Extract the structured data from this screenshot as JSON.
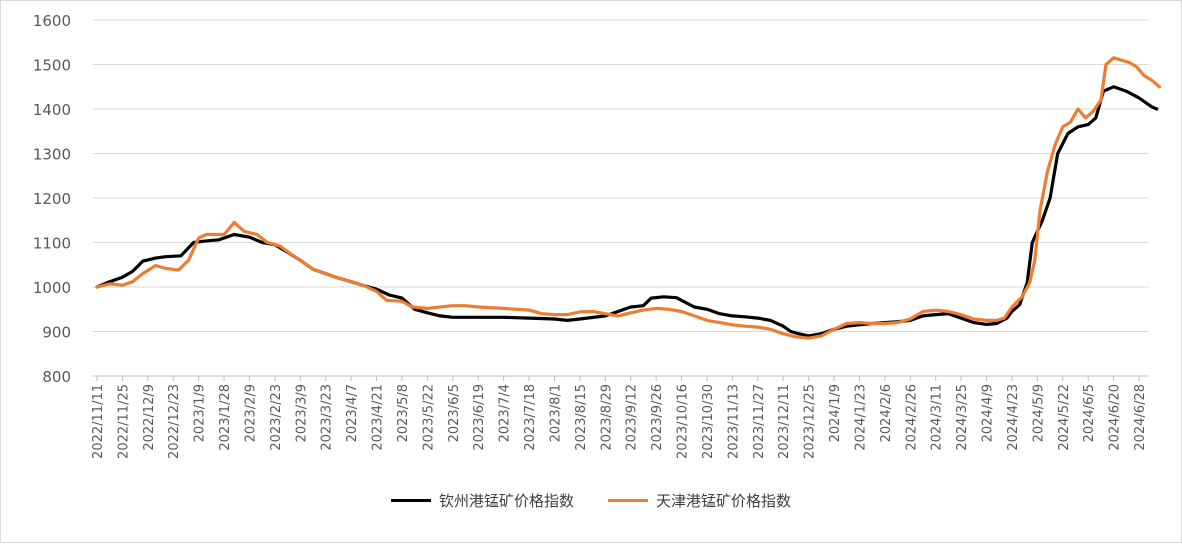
{
  "chart_data": {
    "type": "line",
    "title": "",
    "xlabel": "",
    "ylabel": "",
    "ylim": [
      800,
      1600
    ],
    "yticks": [
      800,
      900,
      1000,
      1100,
      1200,
      1300,
      1400,
      1500,
      1600
    ],
    "grid": true,
    "legend_position": "bottom",
    "x_tick_labels": [
      "2022/11/11",
      "2022/11/25",
      "2022/12/9",
      "2022/12/23",
      "2023/1/9",
      "2023/1/28",
      "2023/2/9",
      "2023/2/23",
      "2023/3/9",
      "2023/3/23",
      "2023/4/7",
      "2023/4/21",
      "2023/5/8",
      "2023/5/22",
      "2023/6/5",
      "2023/6/19",
      "2023/7/4",
      "2023/7/18",
      "2023/8/1",
      "2023/8/15",
      "2023/8/29",
      "2023/9/12",
      "2023/9/26",
      "2023/10/16",
      "2023/10/30",
      "2023/11/13",
      "2023/11/27",
      "2023/12/11",
      "2023/12/25",
      "2024/1/9",
      "2024/1/23",
      "2024/2/6",
      "2024/2/26",
      "2024/3/11",
      "2024/3/25",
      "2024/4/9",
      "2024/4/23",
      "2024/5/9",
      "2024/5/22",
      "2024/6/5",
      "2024/6/20",
      "2024/6/28"
    ],
    "series": [
      {
        "name": "钦州港锰矿价格指数",
        "color": "#000000",
        "points": [
          [
            0,
            1000
          ],
          [
            0.5,
            1012
          ],
          [
            1,
            1022
          ],
          [
            1.4,
            1035
          ],
          [
            1.8,
            1058
          ],
          [
            2.3,
            1065
          ],
          [
            2.7,
            1068
          ],
          [
            3.3,
            1070
          ],
          [
            3.8,
            1100
          ],
          [
            4.2,
            1103
          ],
          [
            4.8,
            1106
          ],
          [
            5.4,
            1118
          ],
          [
            6,
            1112
          ],
          [
            6.5,
            1100
          ],
          [
            7,
            1095
          ],
          [
            7.5,
            1078
          ],
          [
            8,
            1060
          ],
          [
            8.5,
            1040
          ],
          [
            9,
            1030
          ],
          [
            9.5,
            1020
          ],
          [
            10,
            1012
          ],
          [
            10.5,
            1003
          ],
          [
            11,
            995
          ],
          [
            11.5,
            982
          ],
          [
            12,
            975
          ],
          [
            12.5,
            950
          ],
          [
            13,
            942
          ],
          [
            13.5,
            935
          ],
          [
            14,
            932
          ],
          [
            15,
            932
          ],
          [
            16,
            932
          ],
          [
            17,
            930
          ],
          [
            18,
            928
          ],
          [
            18.5,
            925
          ],
          [
            19,
            928
          ],
          [
            20,
            935
          ],
          [
            20.5,
            945
          ],
          [
            21,
            955
          ],
          [
            21.5,
            958
          ],
          [
            21.8,
            975
          ],
          [
            22.3,
            978
          ],
          [
            22.8,
            976
          ],
          [
            23,
            970
          ],
          [
            23.5,
            955
          ],
          [
            24,
            950
          ],
          [
            24.5,
            940
          ],
          [
            25,
            935
          ],
          [
            25.5,
            933
          ],
          [
            26,
            930
          ],
          [
            26.5,
            925
          ],
          [
            27,
            912
          ],
          [
            27.3,
            900
          ],
          [
            27.6,
            895
          ],
          [
            28,
            890
          ],
          [
            28.5,
            895
          ],
          [
            29,
            905
          ],
          [
            29.5,
            912
          ],
          [
            30,
            915
          ],
          [
            30.5,
            918
          ],
          [
            31,
            920
          ],
          [
            31.5,
            922
          ],
          [
            32,
            925
          ],
          [
            32.5,
            935
          ],
          [
            33,
            938
          ],
          [
            33.5,
            940
          ],
          [
            34,
            930
          ],
          [
            34.5,
            920
          ],
          [
            35,
            916
          ],
          [
            35.4,
            918
          ],
          [
            35.8,
            930
          ],
          [
            36,
            945
          ],
          [
            36.3,
            960
          ],
          [
            36.6,
            1010
          ],
          [
            36.8,
            1100
          ],
          [
            37.2,
            1150
          ],
          [
            37.5,
            1200
          ],
          [
            37.8,
            1300
          ],
          [
            38.2,
            1345
          ],
          [
            38.6,
            1360
          ],
          [
            39,
            1365
          ],
          [
            39.3,
            1380
          ],
          [
            39.6,
            1440
          ],
          [
            40,
            1450
          ],
          [
            40.5,
            1440
          ],
          [
            41,
            1425
          ],
          [
            41.5,
            1405
          ],
          [
            41.7,
            1400
          ]
        ]
      },
      {
        "name": "天津港锰矿价格指数",
        "color": "#ed7d31",
        "points": [
          [
            0,
            1000
          ],
          [
            0.5,
            1007
          ],
          [
            1,
            1004
          ],
          [
            1.4,
            1012
          ],
          [
            1.8,
            1030
          ],
          [
            2.3,
            1048
          ],
          [
            2.7,
            1042
          ],
          [
            3.2,
            1038
          ],
          [
            3.6,
            1060
          ],
          [
            4,
            1110
          ],
          [
            4.3,
            1118
          ],
          [
            5,
            1118
          ],
          [
            5.4,
            1145
          ],
          [
            5.8,
            1125
          ],
          [
            6.3,
            1118
          ],
          [
            6.7,
            1100
          ],
          [
            7.2,
            1092
          ],
          [
            7.6,
            1075
          ],
          [
            8,
            1060
          ],
          [
            8.5,
            1040
          ],
          [
            9,
            1030
          ],
          [
            9.5,
            1020
          ],
          [
            10,
            1012
          ],
          [
            10.5,
            1003
          ],
          [
            11,
            990
          ],
          [
            11.4,
            970
          ],
          [
            12,
            968
          ],
          [
            12.4,
            955
          ],
          [
            13,
            952
          ],
          [
            13.5,
            955
          ],
          [
            14,
            958
          ],
          [
            14.5,
            958
          ],
          [
            15,
            955
          ],
          [
            16,
            952
          ],
          [
            17,
            948
          ],
          [
            17.5,
            940
          ],
          [
            18,
            938
          ],
          [
            18.5,
            938
          ],
          [
            19,
            944
          ],
          [
            19.5,
            945
          ],
          [
            20,
            940
          ],
          [
            20.5,
            935
          ],
          [
            21,
            942
          ],
          [
            21.5,
            948
          ],
          [
            22,
            952
          ],
          [
            22.5,
            950
          ],
          [
            23,
            945
          ],
          [
            23.5,
            935
          ],
          [
            24,
            925
          ],
          [
            24.5,
            920
          ],
          [
            25,
            915
          ],
          [
            25.5,
            912
          ],
          [
            26,
            910
          ],
          [
            26.5,
            905
          ],
          [
            27,
            895
          ],
          [
            27.5,
            888
          ],
          [
            28,
            885
          ],
          [
            28.5,
            890
          ],
          [
            29,
            905
          ],
          [
            29.5,
            918
          ],
          [
            30,
            920
          ],
          [
            30.5,
            918
          ],
          [
            31,
            918
          ],
          [
            31.5,
            920
          ],
          [
            32,
            928
          ],
          [
            32.5,
            945
          ],
          [
            33,
            948
          ],
          [
            33.5,
            945
          ],
          [
            34,
            938
          ],
          [
            34.5,
            928
          ],
          [
            35,
            925
          ],
          [
            35.4,
            925
          ],
          [
            35.7,
            930
          ],
          [
            36,
            955
          ],
          [
            36.4,
            978
          ],
          [
            36.7,
            1010
          ],
          [
            36.9,
            1060
          ],
          [
            37.1,
            1170
          ],
          [
            37.4,
            1260
          ],
          [
            37.7,
            1320
          ],
          [
            38,
            1360
          ],
          [
            38.3,
            1370
          ],
          [
            38.6,
            1400
          ],
          [
            38.9,
            1380
          ],
          [
            39.2,
            1395
          ],
          [
            39.5,
            1420
          ],
          [
            39.7,
            1500
          ],
          [
            40,
            1515
          ],
          [
            40.3,
            1510
          ],
          [
            40.6,
            1505
          ],
          [
            40.9,
            1495
          ],
          [
            41.2,
            1475
          ],
          [
            41.5,
            1465
          ],
          [
            41.8,
            1450
          ]
        ]
      }
    ]
  }
}
